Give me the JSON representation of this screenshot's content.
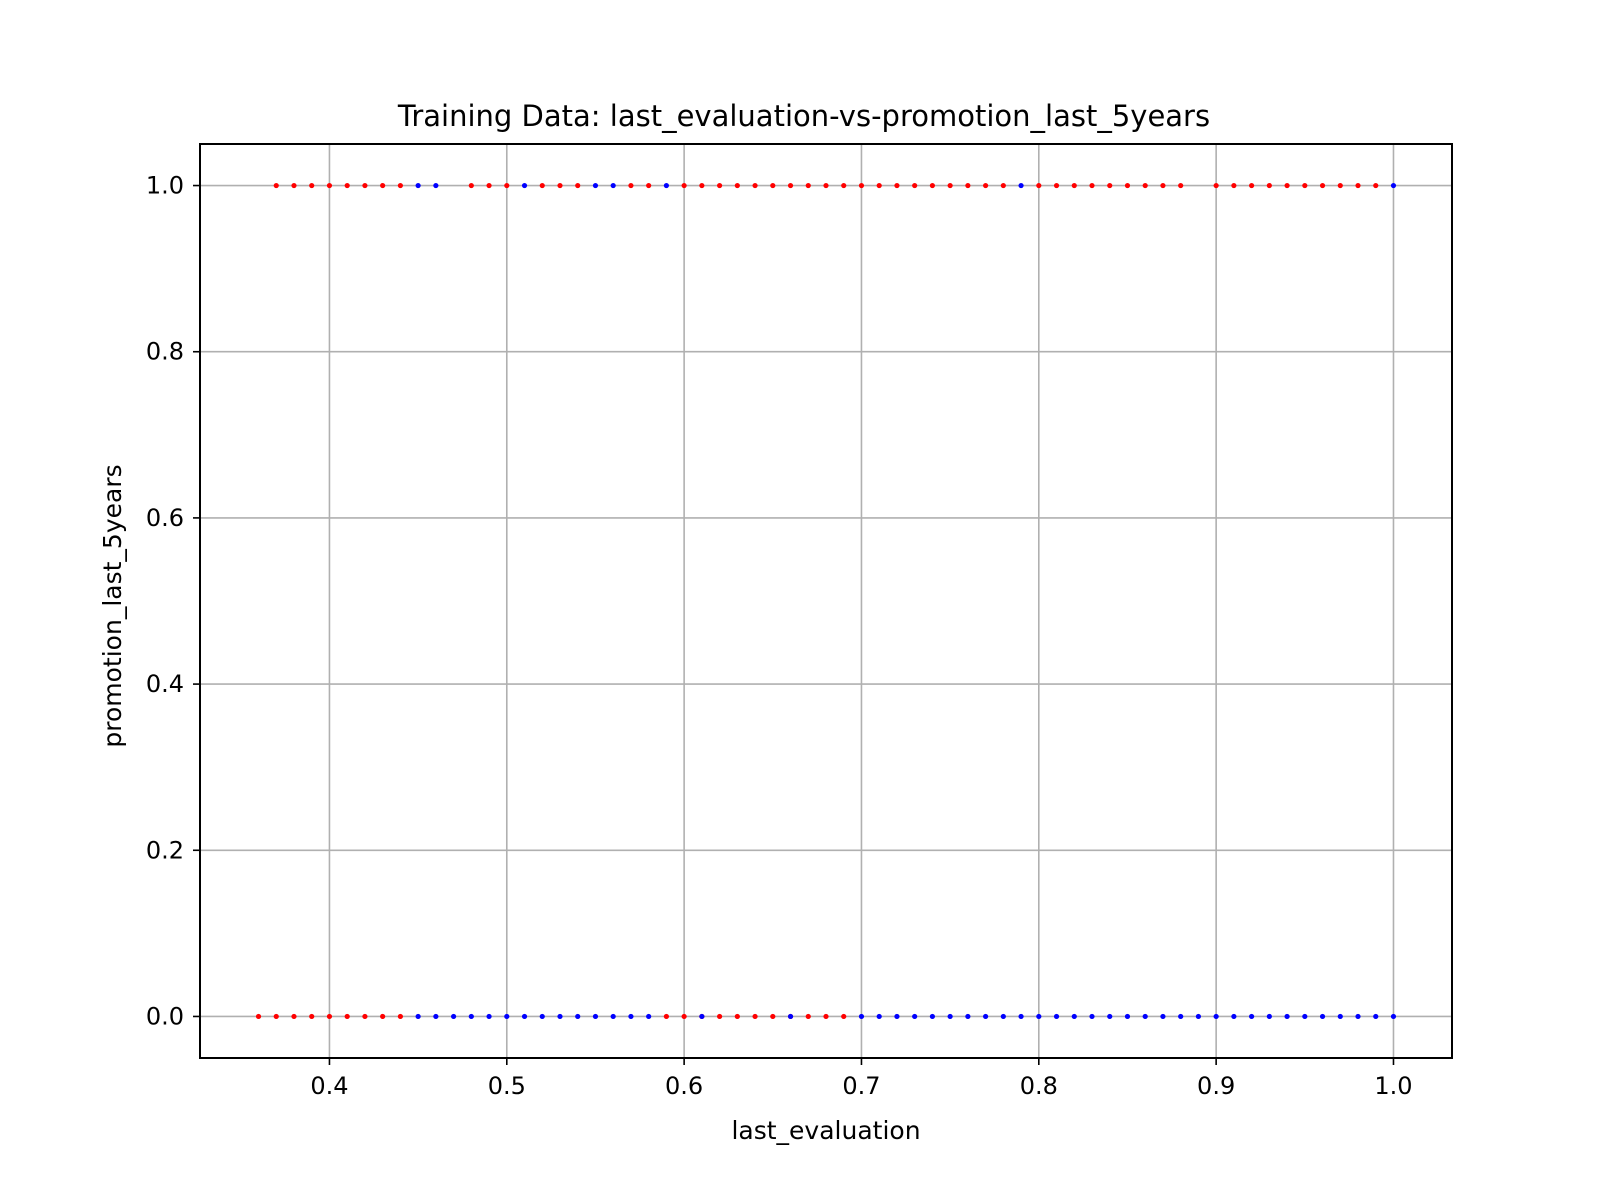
{
  "chart_data": {
    "type": "scatter",
    "title": "Training Data: last_evaluation-vs-promotion_last_5years",
    "xlabel": "last_evaluation",
    "ylabel": "promotion_last_5years",
    "xlim": [
      0.327,
      1.033
    ],
    "ylim": [
      -0.05,
      1.05
    ],
    "xticks": [
      0.4,
      0.5,
      0.6,
      0.7,
      0.8,
      0.9,
      1.0
    ],
    "xtick_labels": [
      "0.4",
      "0.5",
      "0.6",
      "0.7",
      "0.8",
      "0.9",
      "1.0"
    ],
    "yticks": [
      0.0,
      0.2,
      0.4,
      0.6,
      0.8,
      1.0
    ],
    "ytick_labels": [
      "0.0",
      "0.2",
      "0.4",
      "0.6",
      "0.8",
      "1.0"
    ],
    "grid": true,
    "colors": {
      "red": "#ff0000",
      "blue": "#0000ff",
      "grid": "#b0b0b0"
    },
    "series": [
      {
        "color": "#ff0000",
        "x": [
          0.36,
          0.37,
          0.38,
          0.39,
          0.4,
          0.41,
          0.42,
          0.43,
          0.44,
          0.59,
          0.6,
          0.61,
          0.62,
          0.63,
          0.64,
          0.65,
          0.66,
          0.67,
          0.68,
          0.69,
          0.37,
          0.38,
          0.39,
          0.4,
          0.41,
          0.42,
          0.43,
          0.44,
          0.48,
          0.49,
          0.5,
          0.52,
          0.53,
          0.54,
          0.57,
          0.58,
          0.6,
          0.61,
          0.62,
          0.63,
          0.64,
          0.65,
          0.66,
          0.67,
          0.68,
          0.69,
          0.7,
          0.71,
          0.72,
          0.73,
          0.74,
          0.75,
          0.76,
          0.77,
          0.78,
          0.8,
          0.81,
          0.82,
          0.83,
          0.84,
          0.85,
          0.86,
          0.87,
          0.88,
          0.9,
          0.91,
          0.92,
          0.93,
          0.94,
          0.95,
          0.96,
          0.97,
          0.98,
          0.99
        ],
        "y": [
          0,
          0,
          0,
          0,
          0,
          0,
          0,
          0,
          0,
          0,
          0,
          0,
          0,
          0,
          0,
          0,
          0,
          0,
          0,
          0,
          1,
          1,
          1,
          1,
          1,
          1,
          1,
          1,
          1,
          1,
          1,
          1,
          1,
          1,
          1,
          1,
          1,
          1,
          1,
          1,
          1,
          1,
          1,
          1,
          1,
          1,
          1,
          1,
          1,
          1,
          1,
          1,
          1,
          1,
          1,
          1,
          1,
          1,
          1,
          1,
          1,
          1,
          1,
          1,
          1,
          1,
          1,
          1,
          1,
          1,
          1,
          1,
          1,
          1
        ]
      },
      {
        "color": "#0000ff",
        "x": [
          0.45,
          0.46,
          0.47,
          0.48,
          0.49,
          0.5,
          0.51,
          0.52,
          0.53,
          0.54,
          0.55,
          0.56,
          0.57,
          0.58,
          0.61,
          0.66,
          0.7,
          0.71,
          0.72,
          0.73,
          0.74,
          0.75,
          0.76,
          0.77,
          0.78,
          0.79,
          0.8,
          0.81,
          0.82,
          0.83,
          0.84,
          0.85,
          0.86,
          0.87,
          0.88,
          0.89,
          0.9,
          0.91,
          0.92,
          0.93,
          0.94,
          0.95,
          0.96,
          0.97,
          0.98,
          0.99,
          1.0,
          0.45,
          0.46,
          0.51,
          0.55,
          0.56,
          0.59,
          0.79,
          1.0
        ],
        "y": [
          0,
          0,
          0,
          0,
          0,
          0,
          0,
          0,
          0,
          0,
          0,
          0,
          0,
          0,
          0,
          0,
          0,
          0,
          0,
          0,
          0,
          0,
          0,
          0,
          0,
          0,
          0,
          0,
          0,
          0,
          0,
          0,
          0,
          0,
          0,
          0,
          0,
          0,
          0,
          0,
          0,
          0,
          0,
          0,
          0,
          0,
          0,
          1,
          1,
          1,
          1,
          1,
          1,
          1,
          1
        ]
      }
    ]
  }
}
